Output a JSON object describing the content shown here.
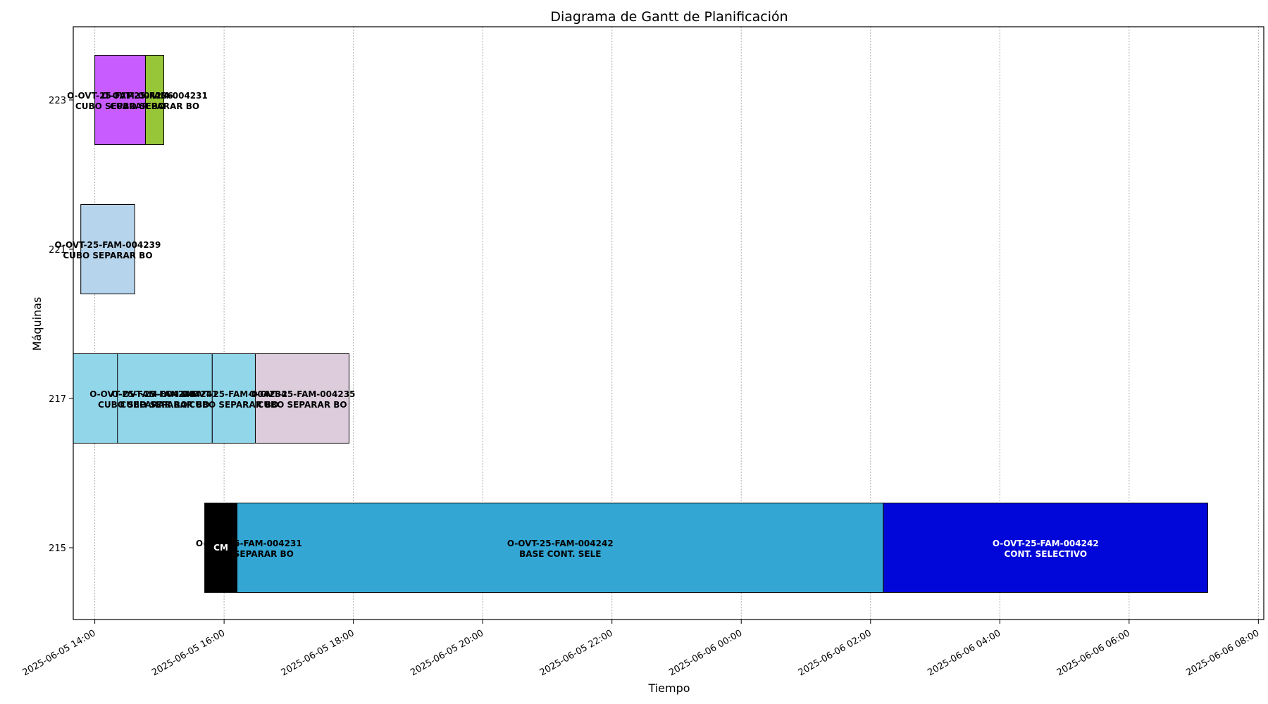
{
  "chart_data": {
    "type": "gantt",
    "title": "Diagrama de Gantt de Planificación",
    "xlabel": "Tiempo",
    "ylabel": "Máquinas",
    "x_range": [
      "2025-06-05 13:40",
      "2025-06-06 08:05"
    ],
    "grid": "x dotted",
    "machines": [
      "215",
      "217",
      "221",
      "223"
    ],
    "x_ticks": [
      "2025-06-05 14:00",
      "2025-06-05 16:00",
      "2025-06-05 18:00",
      "2025-06-05 20:00",
      "2025-06-05 22:00",
      "2025-06-06 00:00",
      "2025-06-06 02:00",
      "2025-06-06 04:00",
      "2025-06-06 06:00",
      "2025-06-06 08:00"
    ],
    "tasks": [
      {
        "machine": "223",
        "start": "2025-06-05 14:00",
        "end": "2025-06-05 14:47",
        "color": "#c85cff",
        "label_color": "#000000",
        "text": "O-OVT-25-FAM-004236\nCUBO SEPARAR BO"
      },
      {
        "machine": "223",
        "start": "2025-06-05 14:47",
        "end": "2025-06-05 15:04",
        "color": "#97c639",
        "label_color": "#000000",
        "text": "O-OVT-25-FAM-004231\nCUBO SEPARAR BO"
      },
      {
        "machine": "221",
        "start": "2025-06-05 13:47",
        "end": "2025-06-05 14:37",
        "color": "#b6d4ec",
        "label_color": "#000000",
        "text": "O-OVT-25-FAM-004239\nCUBO SEPARAR BO"
      },
      {
        "machine": "217",
        "start": "2025-06-05 13:40",
        "end": "2025-06-05 15:49",
        "color": "#92d6ea",
        "label_color": "#000000",
        "text": "O-OVT-25-FAM-004240\nCUBO SEPARAR BO"
      },
      {
        "machine": "217",
        "start": "2025-06-05 14:21",
        "end": "2025-06-05 15:49",
        "color": "#92d6ea",
        "label_color": "#000000",
        "text": "O-OVT-25-FAM-004241\nCUBO SEPARAR BO"
      },
      {
        "machine": "217",
        "start": "2025-06-05 15:49",
        "end": "2025-06-05 16:29",
        "color": "#92d6ea",
        "label_color": "#000000",
        "text": "O-OVT-25-FAM-004234\nCUBO SEPARAR BO"
      },
      {
        "machine": "217",
        "start": "2025-06-05 16:29",
        "end": "2025-06-05 17:56",
        "color": "#dcccdc",
        "label_color": "#000000",
        "text": "O-OVT-25-FAM-004235\nCUBO SEPARAR BO"
      },
      {
        "machine": "215",
        "start": "2025-06-05 16:00",
        "end": "2025-06-05 16:46",
        "color": "#33a6d3",
        "label_color": "#000000",
        "text": "O-OVT-25-FAM-004231\nCUBO SEPARAR BO"
      },
      {
        "machine": "215",
        "start": "2025-06-05 15:42",
        "end": "2025-06-05 16:12",
        "color": "#000000",
        "label_color": "#ffffff",
        "text": "CM"
      },
      {
        "machine": "215",
        "start": "2025-06-05 16:12",
        "end": "2025-06-06 02:12",
        "color": "#33a6d3",
        "label_color": "#000000",
        "text": "O-OVT-25-FAM-004242\nBASE CONT. SELE"
      },
      {
        "machine": "215",
        "start": "2025-06-06 02:12",
        "end": "2025-06-06 07:13",
        "color": "#0007d8",
        "label_color": "#ffffff",
        "text": "O-OVT-25-FAM-004242\nCONT. SELECTIVO"
      }
    ]
  }
}
